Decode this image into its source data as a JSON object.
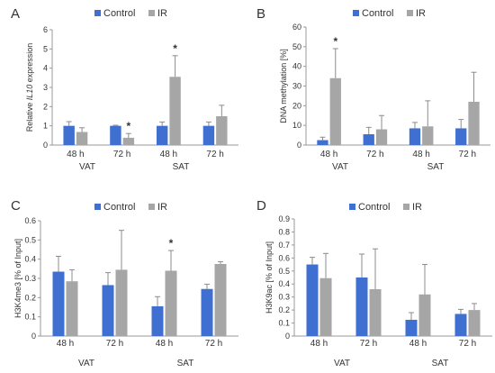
{
  "legend": {
    "control": "Control",
    "ir": "IR"
  },
  "colors": {
    "control": "#3e6fd1",
    "ir": "#a6a6a6",
    "axis": "#999999",
    "error": "#8c8c8c"
  },
  "chart_data": [
    {
      "panel": "A",
      "type": "bar",
      "ylabel": "Relative IL10 expression",
      "ylabel_italic_word": "IL10",
      "ylim": [
        0,
        6
      ],
      "yticks": [
        "0",
        "1",
        "2",
        "3",
        "4",
        "5",
        "6"
      ],
      "categories": [
        "48 h",
        "72 h",
        "48 h",
        "72 h"
      ],
      "groups": [
        {
          "label": "VAT",
          "span": [
            0,
            1
          ]
        },
        {
          "label": "SAT",
          "span": [
            2,
            3
          ]
        }
      ],
      "legend_position": "top",
      "series": [
        {
          "name": "Control",
          "values": [
            1.0,
            1.0,
            1.0,
            1.0
          ],
          "errors": [
            0.22,
            0.03,
            0.2,
            0.2
          ]
        },
        {
          "name": "IR",
          "values": [
            0.68,
            0.38,
            3.55,
            1.5
          ],
          "errors": [
            0.22,
            0.22,
            1.1,
            0.57
          ]
        }
      ],
      "significance": [
        {
          "series": 1,
          "index": 1,
          "mark": "*"
        },
        {
          "series": 1,
          "index": 2,
          "mark": "*"
        }
      ]
    },
    {
      "panel": "B",
      "type": "bar",
      "ylabel": "DNA methylation [%]",
      "ylim": [
        0,
        60
      ],
      "yticks": [
        "0",
        "10",
        "20",
        "30",
        "40",
        "50",
        "60"
      ],
      "categories": [
        "48 h",
        "72 h",
        "48 h",
        "72 h"
      ],
      "groups": [
        {
          "label": "VAT",
          "span": [
            0,
            1
          ]
        },
        {
          "label": "SAT",
          "span": [
            2,
            3
          ]
        }
      ],
      "legend_position": "top",
      "series": [
        {
          "name": "Control",
          "values": [
            2.5,
            5.5,
            8.5,
            8.5
          ],
          "errors": [
            1.5,
            3.5,
            3.0,
            4.5
          ]
        },
        {
          "name": "IR",
          "values": [
            34,
            8,
            9.5,
            22
          ],
          "errors": [
            15,
            7,
            13,
            15
          ]
        }
      ],
      "significance": [
        {
          "series": 1,
          "index": 0,
          "mark": "*"
        }
      ]
    },
    {
      "panel": "C",
      "type": "bar",
      "ylabel": "H3K4me3 [% of Input]",
      "ylim": [
        0,
        0.6
      ],
      "yticks": [
        "0",
        "0.1",
        "0.2",
        "0.3",
        "0.4",
        "0.5",
        "0.6"
      ],
      "categories": [
        "48 h",
        "72 h",
        "48 h",
        "72 h"
      ],
      "groups": [
        {
          "label": "VAT",
          "span": [
            0,
            1
          ]
        },
        {
          "label": "SAT",
          "span": [
            2,
            3
          ]
        }
      ],
      "legend_position": "top",
      "series": [
        {
          "name": "Control",
          "values": [
            0.335,
            0.265,
            0.155,
            0.245
          ],
          "errors": [
            0.08,
            0.065,
            0.05,
            0.025
          ]
        },
        {
          "name": "IR",
          "values": [
            0.285,
            0.345,
            0.34,
            0.375
          ],
          "errors": [
            0.06,
            0.205,
            0.105,
            0.012
          ]
        }
      ],
      "significance": [
        {
          "series": 1,
          "index": 2,
          "mark": "*"
        }
      ]
    },
    {
      "panel": "D",
      "type": "bar",
      "ylabel": "H3K9ac [% of Input]",
      "ylim": [
        0,
        0.9
      ],
      "yticks": [
        "0",
        "0.1",
        "0.2",
        "0.3",
        "0.4",
        "0.5",
        "0.6",
        "0.7",
        "0.8",
        "0.9"
      ],
      "categories": [
        "48 h",
        "72 h",
        "48 h",
        "72 h"
      ],
      "groups": [
        {
          "label": "VAT",
          "span": [
            0,
            1
          ]
        },
        {
          "label": "SAT",
          "span": [
            2,
            3
          ]
        }
      ],
      "legend_position": "top",
      "series": [
        {
          "name": "Control",
          "values": [
            0.55,
            0.45,
            0.125,
            0.17
          ],
          "errors": [
            0.055,
            0.18,
            0.055,
            0.035
          ]
        },
        {
          "name": "IR",
          "values": [
            0.445,
            0.36,
            0.32,
            0.2
          ],
          "errors": [
            0.19,
            0.31,
            0.23,
            0.05
          ]
        }
      ],
      "significance": []
    }
  ]
}
